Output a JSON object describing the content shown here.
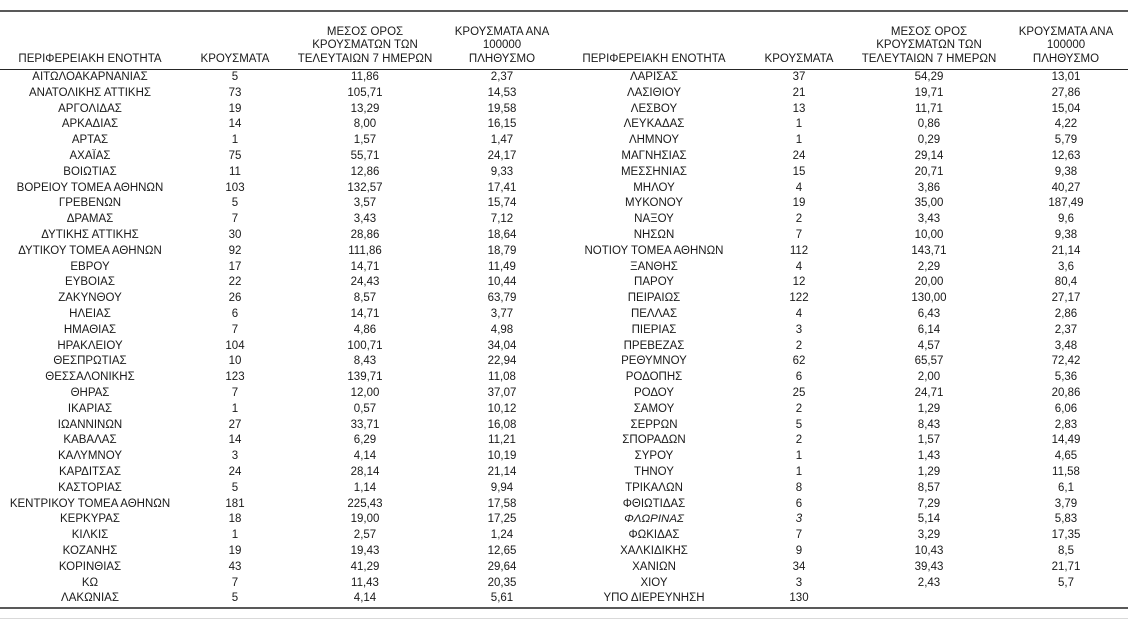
{
  "table_headers": {
    "region": "ΠΕΡΙΦΕΡΕΙΑΚΗ ΕΝΟΤΗΤΑ",
    "cases": "ΚΡΟΥΣΜΑΤΑ",
    "avg7": "ΜΕΣΟΣ ΟΡΟΣ\nΚΡΟΥΣΜΑΤΩΝ ΤΩΝ\nΤΕΛΕΥΤΑΙΩΝ 7 ΗΜΕΡΩΝ",
    "per100k": "ΚΡΟΥΣΜΑΤΑ ΑΝΑ 100000\nΠΛΗΘΥΣΜΟ"
  },
  "colors": {
    "rule_dark": "#595959",
    "rule_header": "#262626",
    "rule_light": "#d9d9d9",
    "text": "#1a1a1a"
  },
  "left_table": {
    "rows": [
      [
        "ΑΙΤΩΛΟΑΚΑΡΝΑΝΙΑΣ",
        "5",
        "11,86",
        "2,37"
      ],
      [
        "ΑΝΑΤΟΛΙΚΗΣ ΑΤΤΙΚΗΣ",
        "73",
        "105,71",
        "14,53"
      ],
      [
        "ΑΡΓΟΛΙΔΑΣ",
        "19",
        "13,29",
        "19,58"
      ],
      [
        "ΑΡΚΑΔΙΑΣ",
        "14",
        "8,00",
        "16,15"
      ],
      [
        "ΑΡΤΑΣ",
        "1",
        "1,57",
        "1,47"
      ],
      [
        "ΑΧΑΪΑΣ",
        "75",
        "55,71",
        "24,17"
      ],
      [
        "ΒΟΙΩΤΙΑΣ",
        "11",
        "12,86",
        "9,33"
      ],
      [
        "ΒΟΡΕΙΟΥ ΤΟΜΕΑ ΑΘΗΝΩΝ",
        "103",
        "132,57",
        "17,41"
      ],
      [
        "ΓΡΕΒΕΝΩΝ",
        "5",
        "3,57",
        "15,74"
      ],
      [
        "ΔΡΑΜΑΣ",
        "7",
        "3,43",
        "7,12"
      ],
      [
        "ΔΥΤΙΚΗΣ ΑΤΤΙΚΗΣ",
        "30",
        "28,86",
        "18,64"
      ],
      [
        "ΔΥΤΙΚΟΥ ΤΟΜΕΑ ΑΘΗΝΩΝ",
        "92",
        "111,86",
        "18,79"
      ],
      [
        "ΕΒΡΟΥ",
        "17",
        "14,71",
        "11,49"
      ],
      [
        "ΕΥΒΟΙΑΣ",
        "22",
        "24,43",
        "10,44"
      ],
      [
        "ΖΑΚΥΝΘΟΥ",
        "26",
        "8,57",
        "63,79"
      ],
      [
        "ΗΛΕΙΑΣ",
        "6",
        "14,71",
        "3,77"
      ],
      [
        "ΗΜΑΘΙΑΣ",
        "7",
        "4,86",
        "4,98"
      ],
      [
        "ΗΡΑΚΛΕΙΟΥ",
        "104",
        "100,71",
        "34,04"
      ],
      [
        "ΘΕΣΠΡΩΤΙΑΣ",
        "10",
        "8,43",
        "22,94"
      ],
      [
        "ΘΕΣΣΑΛΟΝΙΚΗΣ",
        "123",
        "139,71",
        "11,08"
      ],
      [
        "ΘΗΡΑΣ",
        "7",
        "12,00",
        "37,07"
      ],
      [
        "ΙΚΑΡΙΑΣ",
        "1",
        "0,57",
        "10,12"
      ],
      [
        "ΙΩΑΝΝΙΝΩΝ",
        "27",
        "33,71",
        "16,08"
      ],
      [
        "ΚΑΒΑΛΑΣ",
        "14",
        "6,29",
        "11,21"
      ],
      [
        "ΚΑΛΥΜΝΟΥ",
        "3",
        "4,14",
        "10,19"
      ],
      [
        "ΚΑΡΔΙΤΣΑΣ",
        "24",
        "28,14",
        "21,14"
      ],
      [
        "ΚΑΣΤΟΡΙΑΣ",
        "5",
        "1,14",
        "9,94"
      ],
      [
        "ΚΕΝΤΡΙΚΟΥ ΤΟΜΕΑ ΑΘΗΝΩΝ",
        "181",
        "225,43",
        "17,58"
      ],
      [
        "ΚΕΡΚΥΡΑΣ",
        "18",
        "19,00",
        "17,25"
      ],
      [
        "ΚΙΛΚΙΣ",
        "1",
        "2,57",
        "1,24"
      ],
      [
        "ΚΟΖΑΝΗΣ",
        "19",
        "19,43",
        "12,65"
      ],
      [
        "ΚΟΡΙΝΘΙΑΣ",
        "43",
        "41,29",
        "29,64"
      ],
      [
        "ΚΩ",
        "7",
        "11,43",
        "20,35"
      ],
      [
        "ΛΑΚΩΝΙΑΣ",
        "5",
        "4,14",
        "5,61"
      ]
    ]
  },
  "right_table": {
    "rows": [
      [
        "ΛΑΡΙΣΑΣ",
        "37",
        "54,29",
        "13,01"
      ],
      [
        "ΛΑΣΙΘΙΟΥ",
        "21",
        "19,71",
        "27,86"
      ],
      [
        "ΛΕΣΒΟΥ",
        "13",
        "11,71",
        "15,04"
      ],
      [
        "ΛΕΥΚΑΔΑΣ",
        "1",
        "0,86",
        "4,22"
      ],
      [
        "ΛΗΜΝΟΥ",
        "1",
        "0,29",
        "5,79"
      ],
      [
        "ΜΑΓΝΗΣΙΑΣ",
        "24",
        "29,14",
        "12,63"
      ],
      [
        "ΜΕΣΣΗΝΙΑΣ",
        "15",
        "20,71",
        "9,38"
      ],
      [
        "ΜΗΛΟΥ",
        "4",
        "3,86",
        "40,27"
      ],
      [
        "ΜΥΚΟΝΟΥ",
        "19",
        "35,00",
        "187,49"
      ],
      [
        "ΝΑΞΟΥ",
        "2",
        "3,43",
        "9,6"
      ],
      [
        "ΝΗΣΩΝ",
        "7",
        "10,00",
        "9,38"
      ],
      [
        "ΝΟΤΙΟΥ ΤΟΜΕΑ ΑΘΗΝΩΝ",
        "112",
        "143,71",
        "21,14"
      ],
      [
        "ΞΑΝΘΗΣ",
        "4",
        "2,29",
        "3,6"
      ],
      [
        "ΠΑΡΟΥ",
        "12",
        "20,00",
        "80,4"
      ],
      [
        "ΠΕΙΡΑΙΩΣ",
        "122",
        "130,00",
        "27,17"
      ],
      [
        "ΠΕΛΛΑΣ",
        "4",
        "6,43",
        "2,86"
      ],
      [
        "ΠΙΕΡΙΑΣ",
        "3",
        "6,14",
        "2,37"
      ],
      [
        "ΠΡΕΒΕΖΑΣ",
        "2",
        "4,57",
        "3,48"
      ],
      [
        "ΡΕΘΥΜΝΟΥ",
        "62",
        "65,57",
        "72,42"
      ],
      [
        "ΡΟΔΟΠΗΣ",
        "6",
        "2,00",
        "5,36"
      ],
      [
        "ΡΟΔΟΥ",
        "25",
        "24,71",
        "20,86"
      ],
      [
        "ΣΑΜΟΥ",
        "2",
        "1,29",
        "6,06"
      ],
      [
        "ΣΕΡΡΩΝ",
        "5",
        "8,43",
        "2,83"
      ],
      [
        "ΣΠΟΡΑΔΩΝ",
        "2",
        "1,57",
        "14,49"
      ],
      [
        "ΣΥΡΟΥ",
        "1",
        "1,43",
        "4,65"
      ],
      [
        "ΤΗΝΟΥ",
        "1",
        "1,29",
        "11,58"
      ],
      [
        "ΤΡΙΚΑΛΩΝ",
        "8",
        "8,57",
        "6,1"
      ],
      [
        "ΦΘΙΩΤΙΔΑΣ",
        "6",
        "7,29",
        "3,79"
      ],
      [
        "ΦΛΩΡΙΝΑΣ",
        "3",
        "5,14",
        "5,83"
      ],
      [
        "ΦΩΚΙΔΑΣ",
        "7",
        "3,29",
        "17,35"
      ],
      [
        "ΧΑΛΚΙΔΙΚΗΣ",
        "9",
        "10,43",
        "8,5"
      ],
      [
        "ΧΑΝΙΩΝ",
        "34",
        "39,43",
        "21,71"
      ],
      [
        "ΧΙΟΥ",
        "3",
        "2,43",
        "5,7"
      ],
      [
        "ΥΠΟ ΔΙΕΡΕΥΝΗΣΗ",
        "130",
        "",
        ""
      ]
    ]
  },
  "italic_regions": [
    "ΦΛΩΡΙΝΑΣ"
  ]
}
